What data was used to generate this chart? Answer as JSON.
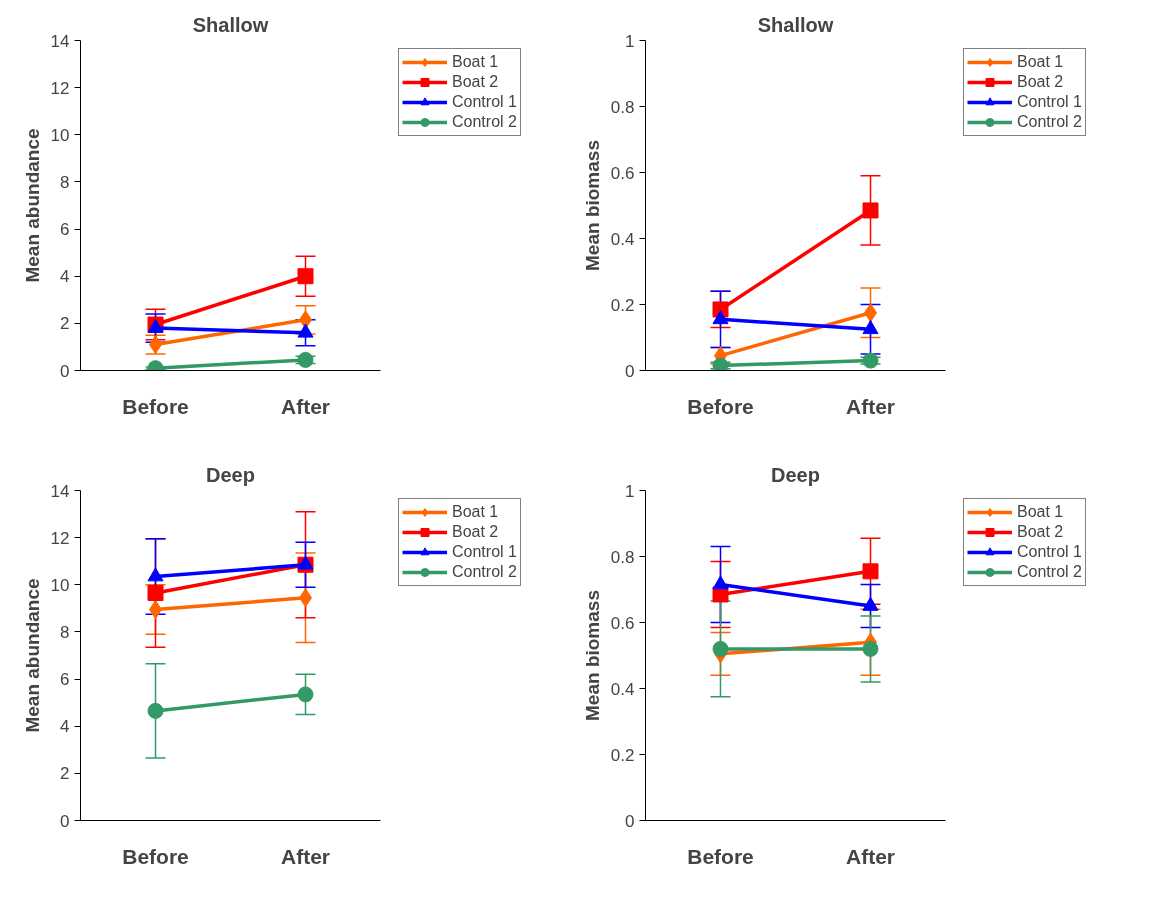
{
  "chart_data": [
    {
      "type": "line",
      "title": "Shallow",
      "ylabel": "Mean abundance",
      "categories": [
        "Before",
        "After"
      ],
      "ylim": [
        0,
        14
      ],
      "yticks": [
        0,
        2,
        4,
        6,
        8,
        10,
        12,
        14
      ],
      "grid": false,
      "legend": "top right",
      "series": [
        {
          "name": "Boat 1",
          "color": "#ff6600",
          "marker": "diamond",
          "values": [
            1.1,
            2.15
          ],
          "errors": [
            0.4,
            0.6
          ]
        },
        {
          "name": "Boat 2",
          "color": "#ff0000",
          "marker": "square",
          "values": [
            1.95,
            4.0
          ],
          "errors": [
            0.65,
            0.85
          ]
        },
        {
          "name": "Control 1",
          "color": "#0000ff",
          "marker": "triangle",
          "values": [
            1.8,
            1.6
          ],
          "errors": [
            0.6,
            0.55
          ]
        },
        {
          "name": "Control 2",
          "color": "#339966",
          "marker": "circle",
          "values": [
            0.1,
            0.45
          ],
          "errors": [
            0.05,
            0.15
          ]
        }
      ]
    },
    {
      "type": "line",
      "title": "Shallow",
      "ylabel": "Mean biomass",
      "categories": [
        "Before",
        "After"
      ],
      "ylim": [
        0,
        1
      ],
      "yticks": [
        0,
        0.2,
        0.4,
        0.6,
        0.8,
        1
      ],
      "grid": false,
      "legend": "top right",
      "series": [
        {
          "name": "Boat 1",
          "color": "#ff6600",
          "marker": "diamond",
          "values": [
            0.045,
            0.175
          ],
          "errors": [
            0.025,
            0.075
          ]
        },
        {
          "name": "Boat 2",
          "color": "#ff0000",
          "marker": "square",
          "values": [
            0.185,
            0.485
          ],
          "errors": [
            0.055,
            0.105
          ]
        },
        {
          "name": "Control 1",
          "color": "#0000ff",
          "marker": "triangle",
          "values": [
            0.155,
            0.125
          ],
          "errors": [
            0.085,
            0.075
          ]
        },
        {
          "name": "Control 2",
          "color": "#339966",
          "marker": "circle",
          "values": [
            0.015,
            0.03
          ],
          "errors": [
            0.01,
            0.01
          ]
        }
      ]
    },
    {
      "type": "line",
      "title": "Deep",
      "ylabel": "Mean abundance",
      "categories": [
        "Before",
        "After"
      ],
      "ylim": [
        0,
        14
      ],
      "yticks": [
        0,
        2,
        4,
        6,
        8,
        10,
        12,
        14
      ],
      "grid": false,
      "legend": "top right",
      "series": [
        {
          "name": "Boat 1",
          "color": "#ff6600",
          "marker": "diamond",
          "values": [
            8.95,
            9.45
          ],
          "errors": [
            1.05,
            1.9
          ]
        },
        {
          "name": "Boat 2",
          "color": "#ff0000",
          "marker": "square",
          "values": [
            9.65,
            10.85
          ],
          "errors": [
            2.3,
            2.25
          ]
        },
        {
          "name": "Control 1",
          "color": "#0000ff",
          "marker": "triangle",
          "values": [
            10.35,
            10.85
          ],
          "errors": [
            1.6,
            0.95
          ]
        },
        {
          "name": "Control 2",
          "color": "#339966",
          "marker": "circle",
          "values": [
            4.65,
            5.35
          ],
          "errors": [
            2.0,
            0.85
          ]
        }
      ]
    },
    {
      "type": "line",
      "title": "Deep",
      "ylabel": "Mean biomass",
      "categories": [
        "Before",
        "After"
      ],
      "ylim": [
        0,
        1
      ],
      "yticks": [
        0,
        0.2,
        0.4,
        0.6,
        0.8,
        1
      ],
      "grid": false,
      "legend": "top right",
      "series": [
        {
          "name": "Boat 1",
          "color": "#ff6600",
          "marker": "diamond",
          "values": [
            0.505,
            0.54
          ],
          "errors": [
            0.065,
            0.1
          ]
        },
        {
          "name": "Boat 2",
          "color": "#ff0000",
          "marker": "square",
          "values": [
            0.685,
            0.755
          ],
          "errors": [
            0.1,
            0.1
          ]
        },
        {
          "name": "Control 1",
          "color": "#0000ff",
          "marker": "triangle",
          "values": [
            0.715,
            0.65
          ],
          "errors": [
            0.115,
            0.065
          ]
        },
        {
          "name": "Control 2",
          "color": "#339966",
          "marker": "circle",
          "values": [
            0.52,
            0.52
          ],
          "errors": [
            0.145,
            0.1
          ]
        }
      ]
    }
  ]
}
